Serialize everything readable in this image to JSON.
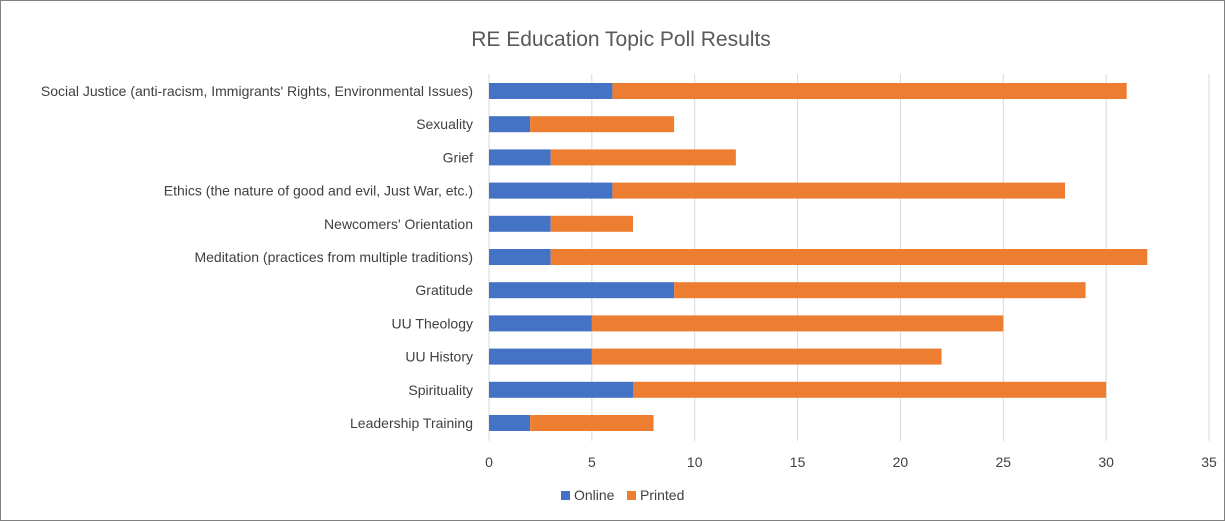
{
  "chart_data": {
    "type": "bar",
    "orientation": "horizontal",
    "stacked": true,
    "title": "RE Education Topic Poll Results",
    "categories": [
      "Social Justice (anti-racism, Immigrants' Rights, Environmental Issues)",
      "Sexuality",
      "Grief",
      "Ethics (the nature of good and evil, Just War, etc.)",
      "Newcomers' Orientation",
      "Meditation (practices from multiple traditions)",
      "Gratitude",
      "UU Theology",
      "UU History",
      "Spirituality",
      "Leadership Training"
    ],
    "series": [
      {
        "name": "Online",
        "color": "#4472c4",
        "values": [
          6,
          2,
          3,
          6,
          3,
          3,
          9,
          5,
          5,
          7,
          2
        ]
      },
      {
        "name": "Printed",
        "color": "#ed7d31",
        "values": [
          25,
          7,
          9,
          22,
          4,
          29,
          20,
          20,
          17,
          23,
          6
        ]
      }
    ],
    "xlim": [
      0,
      35
    ],
    "xticks": [
      "0",
      "5",
      "10",
      "15",
      "20",
      "25",
      "30",
      "35"
    ],
    "grid": true,
    "legend_position": "bottom"
  }
}
